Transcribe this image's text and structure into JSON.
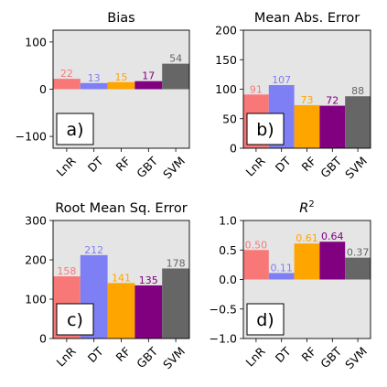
{
  "chart_data": [
    {
      "type": "bar",
      "title": "Bias",
      "panel_label": "a)",
      "categories": [
        "LnR",
        "DT",
        "RF",
        "GBT",
        "SVM"
      ],
      "values": [
        22,
        13,
        15,
        17,
        54
      ],
      "value_labels": [
        "22",
        "13",
        "15",
        "17",
        "54"
      ],
      "ylim": [
        -125,
        125
      ],
      "yticks": [
        -100,
        0,
        100
      ],
      "ytick_labels": [
        "−100",
        "0",
        "100"
      ],
      "grid": false,
      "background": "#e5e5e5"
    },
    {
      "type": "bar",
      "title": "Mean Abs. Error",
      "panel_label": "b)",
      "categories": [
        "LnR",
        "DT",
        "RF",
        "GBT",
        "SVM"
      ],
      "values": [
        91,
        107,
        73,
        72,
        88
      ],
      "value_labels": [
        "91",
        "107",
        "73",
        "72",
        "88"
      ],
      "ylim": [
        0,
        200
      ],
      "yticks": [
        0,
        50,
        100,
        150,
        200
      ],
      "ytick_labels": [
        "0",
        "50",
        "100",
        "150",
        "200"
      ],
      "grid": false,
      "background": "#e5e5e5"
    },
    {
      "type": "bar",
      "title": "Root Mean Sq. Error",
      "panel_label": "c)",
      "categories": [
        "LnR",
        "DT",
        "RF",
        "GBT",
        "SVM"
      ],
      "values": [
        158,
        212,
        141,
        135,
        178
      ],
      "value_labels": [
        "158",
        "212",
        "141",
        "135",
        "178"
      ],
      "ylim": [
        0,
        300
      ],
      "yticks": [
        0,
        100,
        200,
        300
      ],
      "ytick_labels": [
        "0",
        "100",
        "200",
        "300"
      ],
      "grid": false,
      "background": "#e5e5e5"
    },
    {
      "type": "bar",
      "title": "R²",
      "title_main": "R",
      "title_sup": "2",
      "panel_label": "d)",
      "categories": [
        "LnR",
        "DT",
        "RF",
        "GBT",
        "SVM"
      ],
      "values": [
        0.5,
        0.11,
        0.61,
        0.64,
        0.37
      ],
      "value_labels": [
        "0.50",
        "0.11",
        "0.61",
        "0.64",
        "0.37"
      ],
      "ylim": [
        -1.0,
        1.0
      ],
      "yticks": [
        -1.0,
        -0.5,
        0.0,
        0.5,
        1.0
      ],
      "ytick_labels": [
        "−1.0",
        "−0.5",
        "0.0",
        "0.5",
        "1.0"
      ],
      "grid": false,
      "background": "#e5e5e5"
    }
  ],
  "colors": {
    "bars": [
      "#f87878",
      "#7f7ff5",
      "#ffa500",
      "#800080",
      "#666666"
    ],
    "labels": [
      "#f87878",
      "#7f7ff5",
      "#ffa500",
      "#800080",
      "#666666"
    ]
  }
}
